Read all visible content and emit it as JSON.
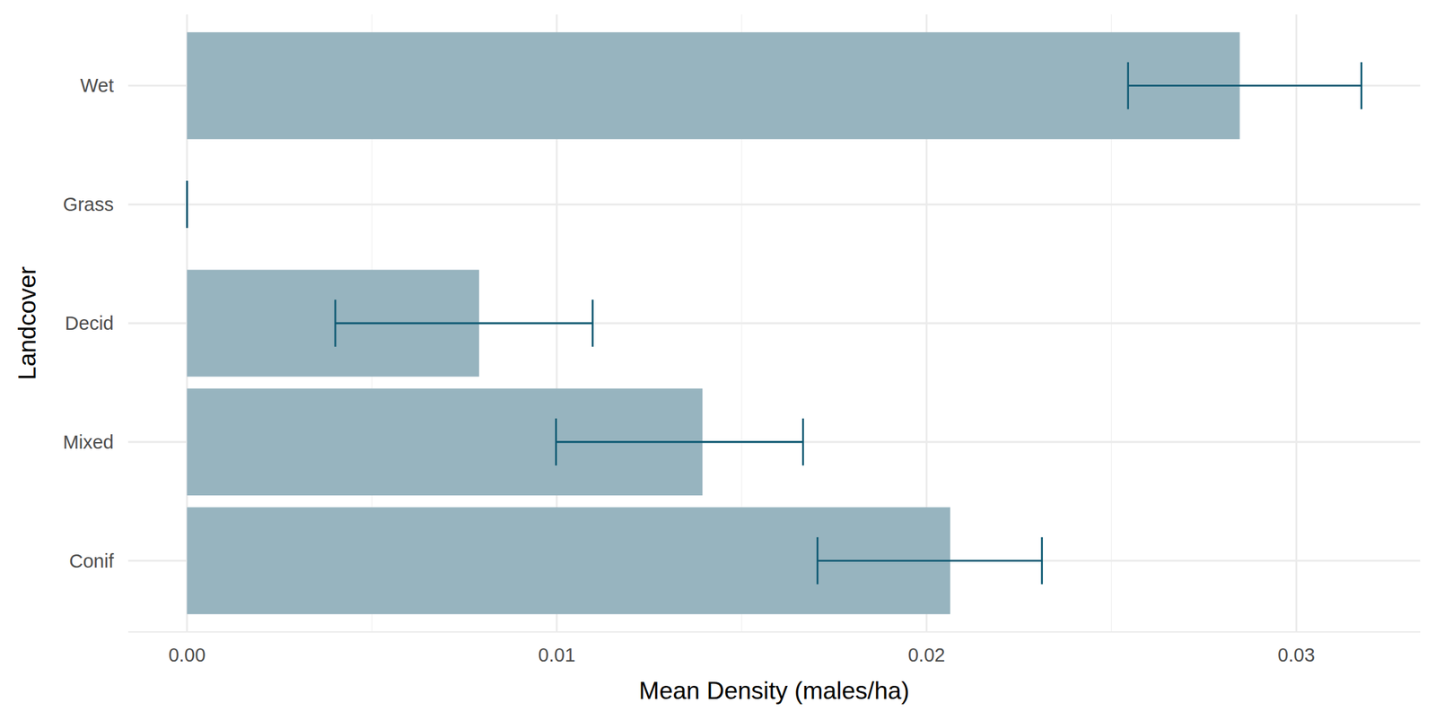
{
  "chart_data": {
    "type": "bar",
    "orientation": "horizontal",
    "x_label": "Mean Density (males/ha)",
    "y_label": "Landcover",
    "categories": [
      "Conif",
      "Mixed",
      "Decid",
      "Grass",
      "Wet"
    ],
    "values": [
      0.02064,
      0.01394,
      0.0079,
      0,
      0.02847
    ],
    "error_low": [
      0.01705,
      0.00998,
      0.00401,
      0,
      0.02545
    ],
    "error_high": [
      0.02312,
      0.01666,
      0.01097,
      0,
      0.03176
    ],
    "color": "#97b4bf",
    "xlim": [
      -0.00159,
      0.03335
    ],
    "xticks": [
      {
        "value": 0,
        "label": "0.00"
      },
      0.01,
      0.02,
      0.03
    ],
    "grid": true
  }
}
